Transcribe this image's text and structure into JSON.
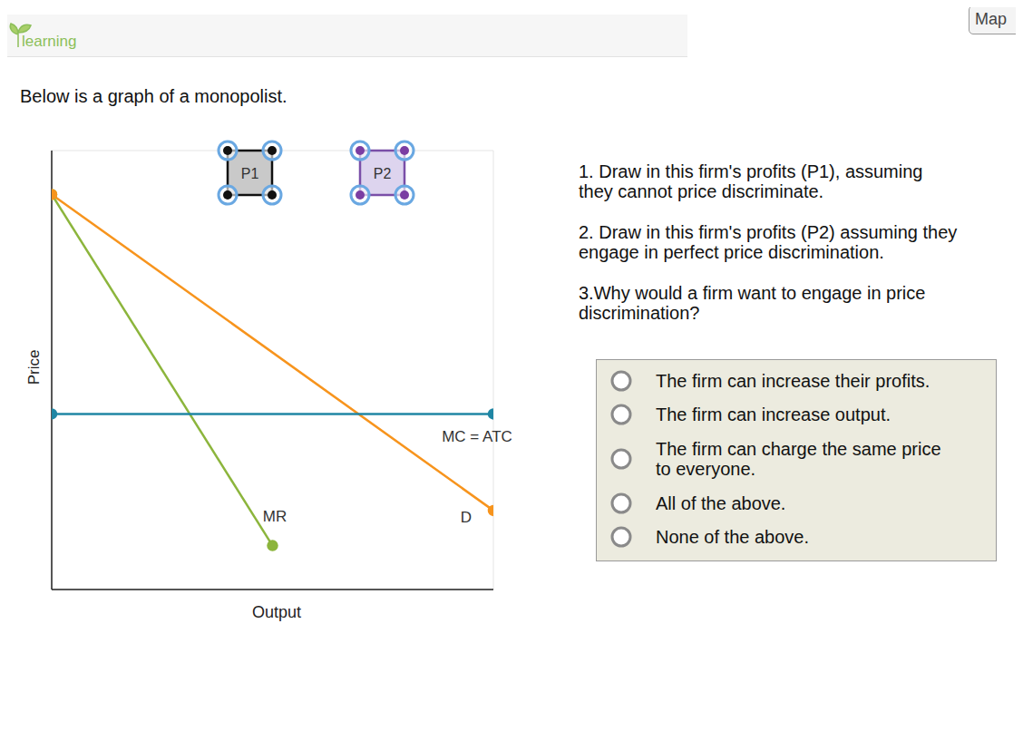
{
  "chart_data": {
    "type": "line",
    "x_label": "Output",
    "y_label": "Price",
    "xlim": [
      0,
      10
    ],
    "ylim": [
      0,
      10
    ],
    "xticks": [
      0,
      1,
      2,
      3,
      4,
      5,
      6,
      7,
      8,
      9,
      10
    ],
    "yticks": [
      0,
      1,
      2,
      3,
      4,
      5,
      6,
      7,
      8,
      9,
      10
    ],
    "grid": true,
    "tick_labels": false,
    "series": [
      {
        "name": "MR",
        "color": "#8cb53c",
        "marker": "circle",
        "x": [
          0,
          5
        ],
        "values": [
          9,
          1
        ]
      },
      {
        "name": "D",
        "color": "#f7941d",
        "marker": "circle",
        "x": [
          0,
          10
        ],
        "values": [
          9,
          1.8
        ]
      },
      {
        "name": "MC = ATC",
        "color": "#1f86a4",
        "marker": "circle",
        "x": [
          0,
          10
        ],
        "values": [
          4,
          4
        ]
      }
    ]
  },
  "page": {
    "header": "learning",
    "map_button": "Map",
    "intro": "Below is a graph of a monopolist.",
    "tools": [
      "P1",
      "P2"
    ],
    "questions": [
      [
        "1. Draw in this firm's profits (P1), assuming",
        "they cannot price discriminate."
      ],
      [
        "2. Draw in this firm's profits (P2) assuming they",
        "engage in perfect price discrimination."
      ],
      [
        "3.Why would a firm want to engage in price",
        "discrimination?"
      ]
    ],
    "options": [
      [
        "The firm can increase their profits."
      ],
      [
        "The firm can increase output."
      ],
      [
        "The firm can charge the same price",
        "to everyone."
      ],
      [
        "All of the above."
      ],
      [
        "None of the above."
      ]
    ]
  }
}
